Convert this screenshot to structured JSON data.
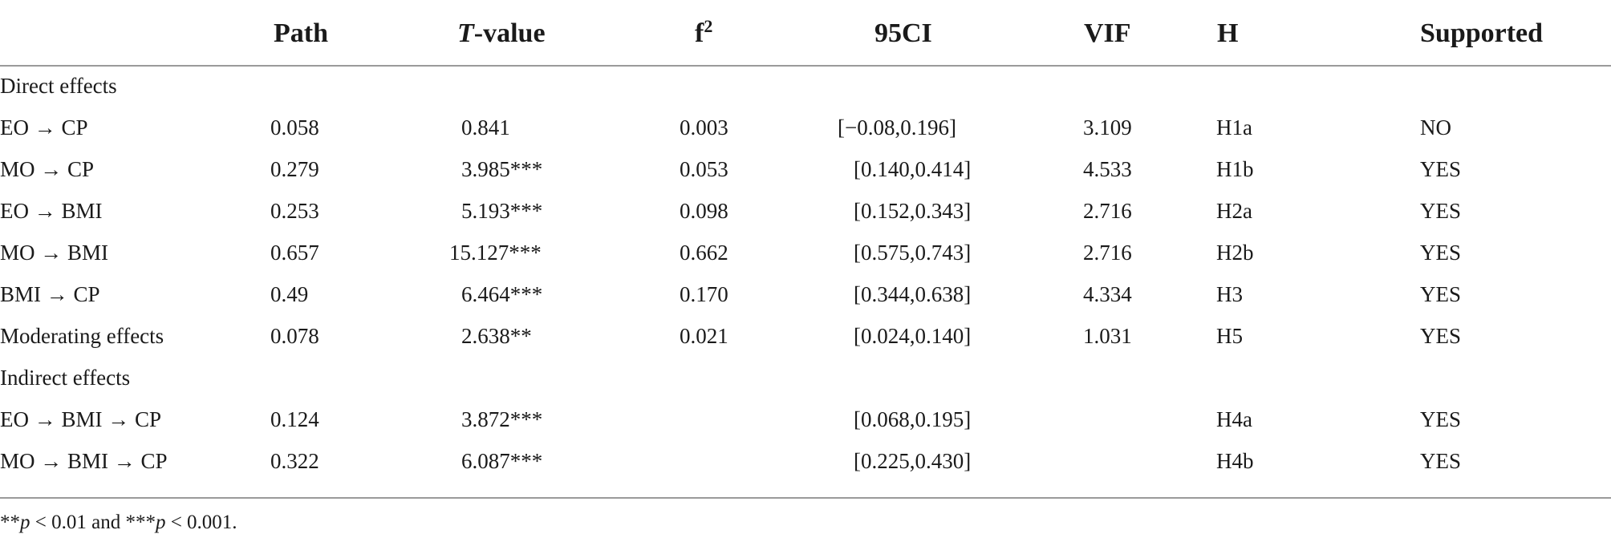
{
  "table": {
    "columns": {
      "label": "",
      "path": "Path",
      "t_value_prefix": "T",
      "t_value_suffix": "-value",
      "f2_base": "f",
      "f2_sup": "2",
      "ci": "95CI",
      "vif": "VIF",
      "h": "H",
      "supported": "Supported"
    },
    "sections": {
      "direct": "Direct effects",
      "indirect": "Indirect effects"
    },
    "rows": [
      {
        "label": "EO → CP",
        "path": "0.058",
        "t": "0.841",
        "f2": "0.003",
        "ci": "[−0.08,0.196]",
        "vif": "3.109",
        "h": "H1a",
        "supported": "NO"
      },
      {
        "label": "MO → CP",
        "path": "0.279",
        "t": "3.985***",
        "f2": "0.053",
        "ci": "[0.140,0.414]",
        "vif": "4.533",
        "h": "H1b",
        "supported": "YES"
      },
      {
        "label": "EO → BMI",
        "path": "0.253",
        "t": "5.193***",
        "f2": "0.098",
        "ci": "[0.152,0.343]",
        "vif": "2.716",
        "h": "H2a",
        "supported": "YES"
      },
      {
        "label": "MO → BMI",
        "path": "0.657",
        "t": "15.127***",
        "f2": "0.662",
        "ci": "[0.575,0.743]",
        "vif": "2.716",
        "h": "H2b",
        "supported": "YES"
      },
      {
        "label": "BMI → CP",
        "path": "0.49",
        "t": "6.464***",
        "f2": "0.170",
        "ci": "[0.344,0.638]",
        "vif": "4.334",
        "h": "H3",
        "supported": "YES"
      },
      {
        "label": "Moderating effects",
        "path": "0.078",
        "t": "2.638**",
        "f2": "0.021",
        "ci": "[0.024,0.140]",
        "vif": "1.031",
        "h": "H5",
        "supported": "YES"
      },
      {
        "label": "EO → BMI → CP",
        "path": "0.124",
        "t": "3.872***",
        "f2": "",
        "ci": "[0.068,0.195]",
        "vif": "",
        "h": "H4a",
        "supported": "YES"
      },
      {
        "label": "MO → BMI → CP",
        "path": "0.322",
        "t": "6.087***",
        "f2": "",
        "ci": "[0.225,0.430]",
        "vif": "",
        "h": "H4b",
        "supported": "YES"
      }
    ],
    "footnote": {
      "p1_stars": "**",
      "p1_var": "p",
      "p1_rest": " < 0.01 and ",
      "p2_stars": "***",
      "p2_var": "p",
      "p2_rest": " < 0.001."
    }
  }
}
